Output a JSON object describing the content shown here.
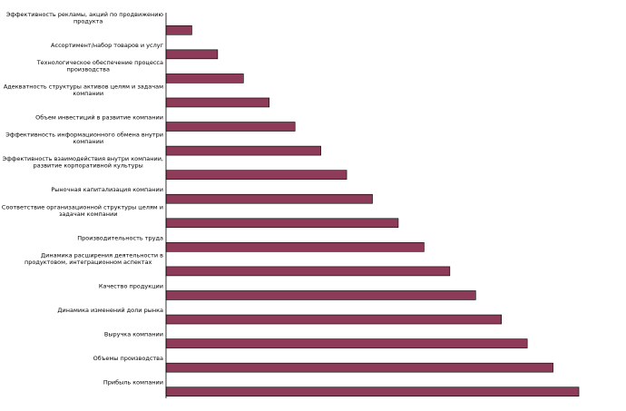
{
  "chart_data": {
    "type": "bar",
    "orientation": "horizontal",
    "categories": [
      "Эффективность рекламы, акций по продвижению продукта",
      "Ассортимент/набор товаров и услуг",
      "Технологическое обеспечение процесса производства",
      "Адекватность структуры активов целям и задачам компании",
      "Объем инвестиций в развитие компании",
      "Эффективность информационного обмена внутри компании",
      "Эффективность взаимодействия внутри компании, развитие корпоративной культуры",
      "Рыночная капитализация компании",
      "Соответствие организационной структуры целям и задачам компании",
      "Производительность труда",
      "Динамика расширения деятельности в продуктовом, интеграционном аспектах",
      "Качество продукции",
      "Динамика изменений доли рынка",
      "Выручка компании",
      "Объемы производства",
      "Прибыль компании"
    ],
    "values": [
      1,
      2,
      3,
      4,
      5,
      6,
      7,
      8,
      9,
      10,
      11,
      12,
      13,
      14,
      15,
      16
    ],
    "title": "",
    "xlabel": "",
    "ylabel": "",
    "xlim": [
      0,
      16
    ],
    "grid": false,
    "legend": "none",
    "bar_color": "#8e3a59"
  }
}
